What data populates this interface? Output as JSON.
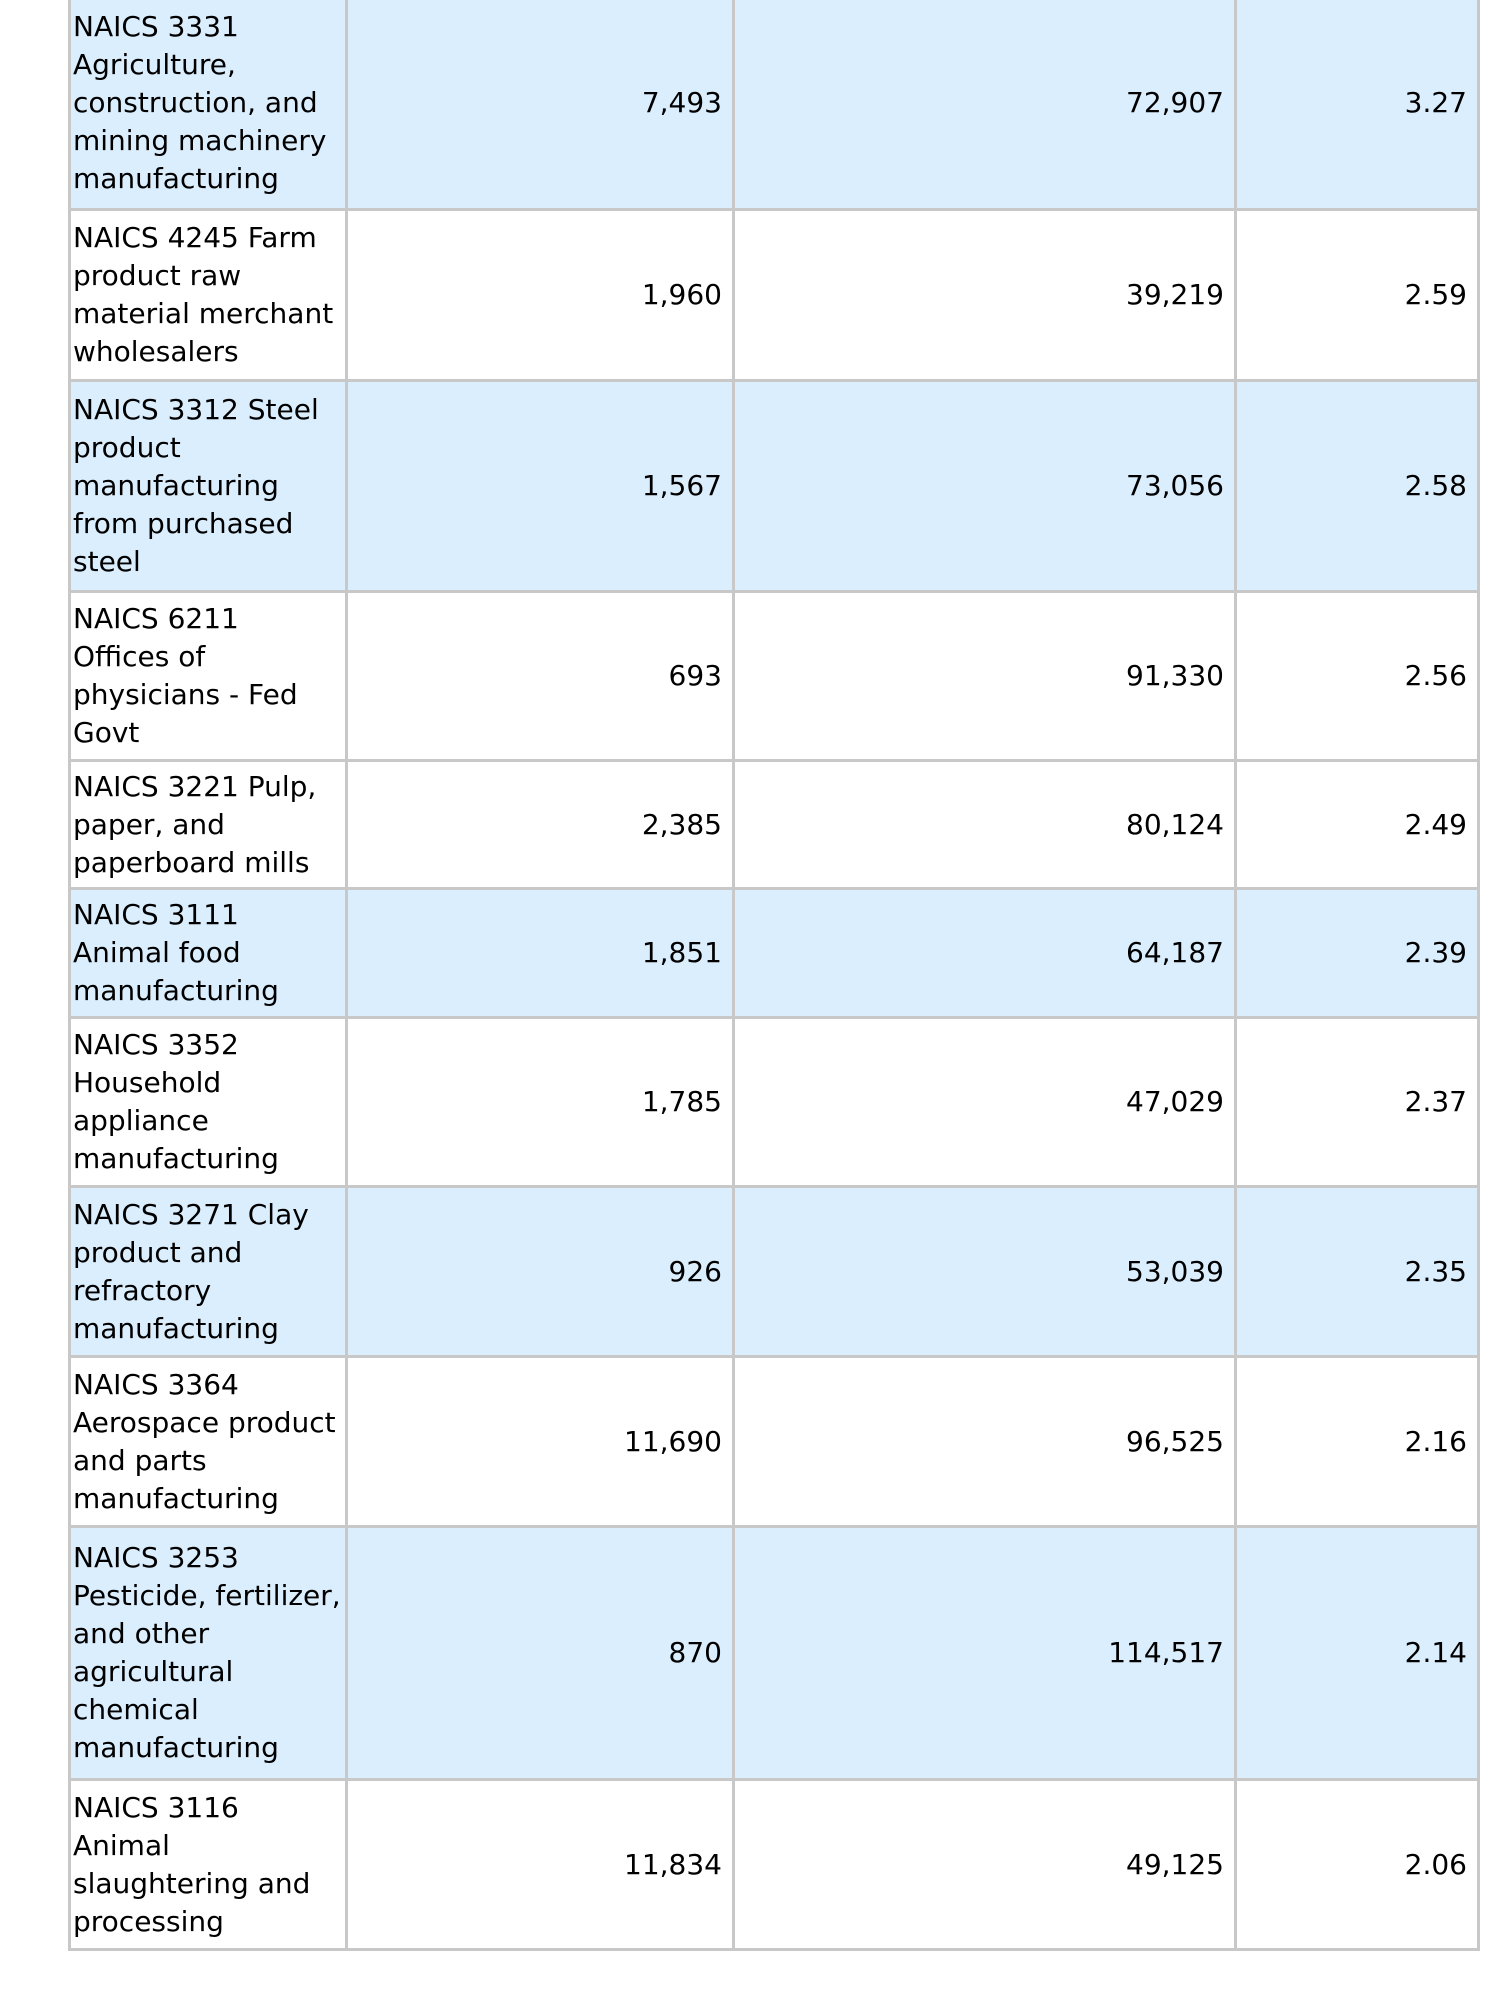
{
  "rows": [
    {
      "industry": "NAICS 3331 Agriculture, construction, and mining machinery manufacturing",
      "col2": "7,493",
      "col3": "72,907",
      "col4": "3.27",
      "highlight": true
    },
    {
      "industry": "NAICS 4245 Farm product raw material merchant wholesalers",
      "col2": "1,960",
      "col3": "39,219",
      "col4": "2.59",
      "highlight": false
    },
    {
      "industry": "NAICS 3312 Steel product manufacturing from purchased steel",
      "col2": "1,567",
      "col3": "73,056",
      "col4": "2.58",
      "highlight": true
    },
    {
      "industry": "NAICS 6211 Offices of physicians - Fed Govt",
      "col2": "693",
      "col3": "91,330",
      "col4": "2.56",
      "highlight": false
    },
    {
      "industry": "NAICS 3221 Pulp, paper, and paperboard mills",
      "col2": "2,385",
      "col3": "80,124",
      "col4": "2.49",
      "highlight": false
    },
    {
      "industry": "NAICS 3111 Animal food manufacturing",
      "col2": "1,851",
      "col3": "64,187",
      "col4": "2.39",
      "highlight": true
    },
    {
      "industry": "NAICS 3352 Household appliance manufacturing",
      "col2": "1,785",
      "col3": "47,029",
      "col4": "2.37",
      "highlight": false
    },
    {
      "industry": "NAICS 3271 Clay product and refractory manufacturing",
      "col2": "926",
      "col3": "53,039",
      "col4": "2.35",
      "highlight": true
    },
    {
      "industry": "NAICS 3364 Aerospace product and parts manufacturing",
      "col2": "11,690",
      "col3": "96,525",
      "col4": "2.16",
      "highlight": false
    },
    {
      "industry": "NAICS 3253 Pesticide, fertilizer, and other agricultural chemical manufacturing",
      "col2": "870",
      "col3": "114,517",
      "col4": "2.14",
      "highlight": true
    },
    {
      "industry": "NAICS 3116 Animal slaughtering and processing",
      "col2": "11,834",
      "col3": "49,125",
      "col4": "2.06",
      "highlight": false
    }
  ],
  "colors": {
    "highlight_row": "#dbeefd",
    "border": "#c8c8c8"
  }
}
